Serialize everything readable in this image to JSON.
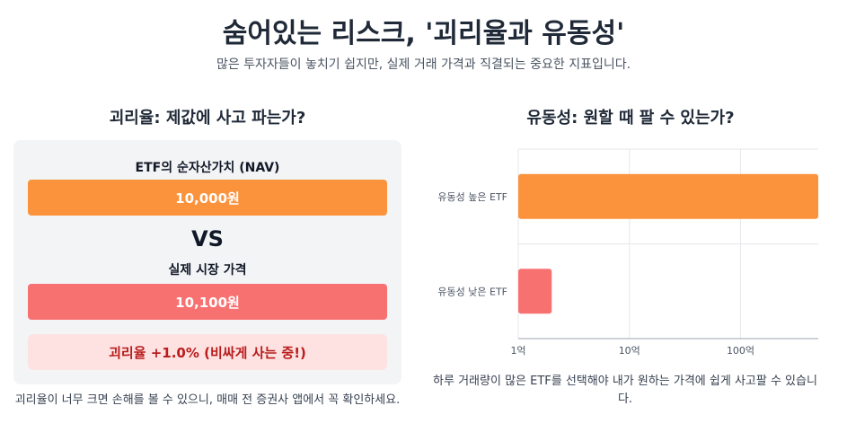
{
  "header": {
    "title": "숨어있는 리스크, '괴리율과 유동성'",
    "subtitle": "많은 투자자들이 놓치기 쉽지만, 실제 거래 가격과 직결되는 중요한 지표입니다."
  },
  "premium_section": {
    "title": "괴리율: 제값에 사고 파는가?",
    "nav_label": "ETF의 순자산가치 (NAV)",
    "nav_value": "10,000원",
    "vs_label": "VS",
    "market_label": "실제 시장 가격",
    "market_value": "10,100원",
    "premium_text": "괴리율 +1.0% (비싸게 사는 중!)",
    "note": "괴리율이 너무 크면 손해를 볼 수 있으니, 매매 전 증권사 앱에서 꼭 확인하세요.",
    "colors": {
      "nav": "#fb923c",
      "market": "#f87171"
    }
  },
  "liquidity_section": {
    "title": "유동성: 원할 때 팔 수 있는가?",
    "note": "하루 거래량이 많은 ETF를 선택해야 내가 원하는 가격에 쉽게 사고팔 수 있습니다."
  },
  "chart_data": {
    "type": "bar",
    "orientation": "horizontal",
    "title": "",
    "categories": [
      "유동성 높은 ETF",
      "유동성 낮은 ETF"
    ],
    "values": [
      500,
      2
    ],
    "x_scale": "log",
    "xlim": [
      1,
      500
    ],
    "x_ticks": [
      {
        "value": 1,
        "label": "1억"
      },
      {
        "value": 10,
        "label": "10억"
      },
      {
        "value": 100,
        "label": "100억"
      }
    ],
    "colors": [
      "#fb923c",
      "#f87171"
    ],
    "grid": true,
    "legend": "none"
  }
}
